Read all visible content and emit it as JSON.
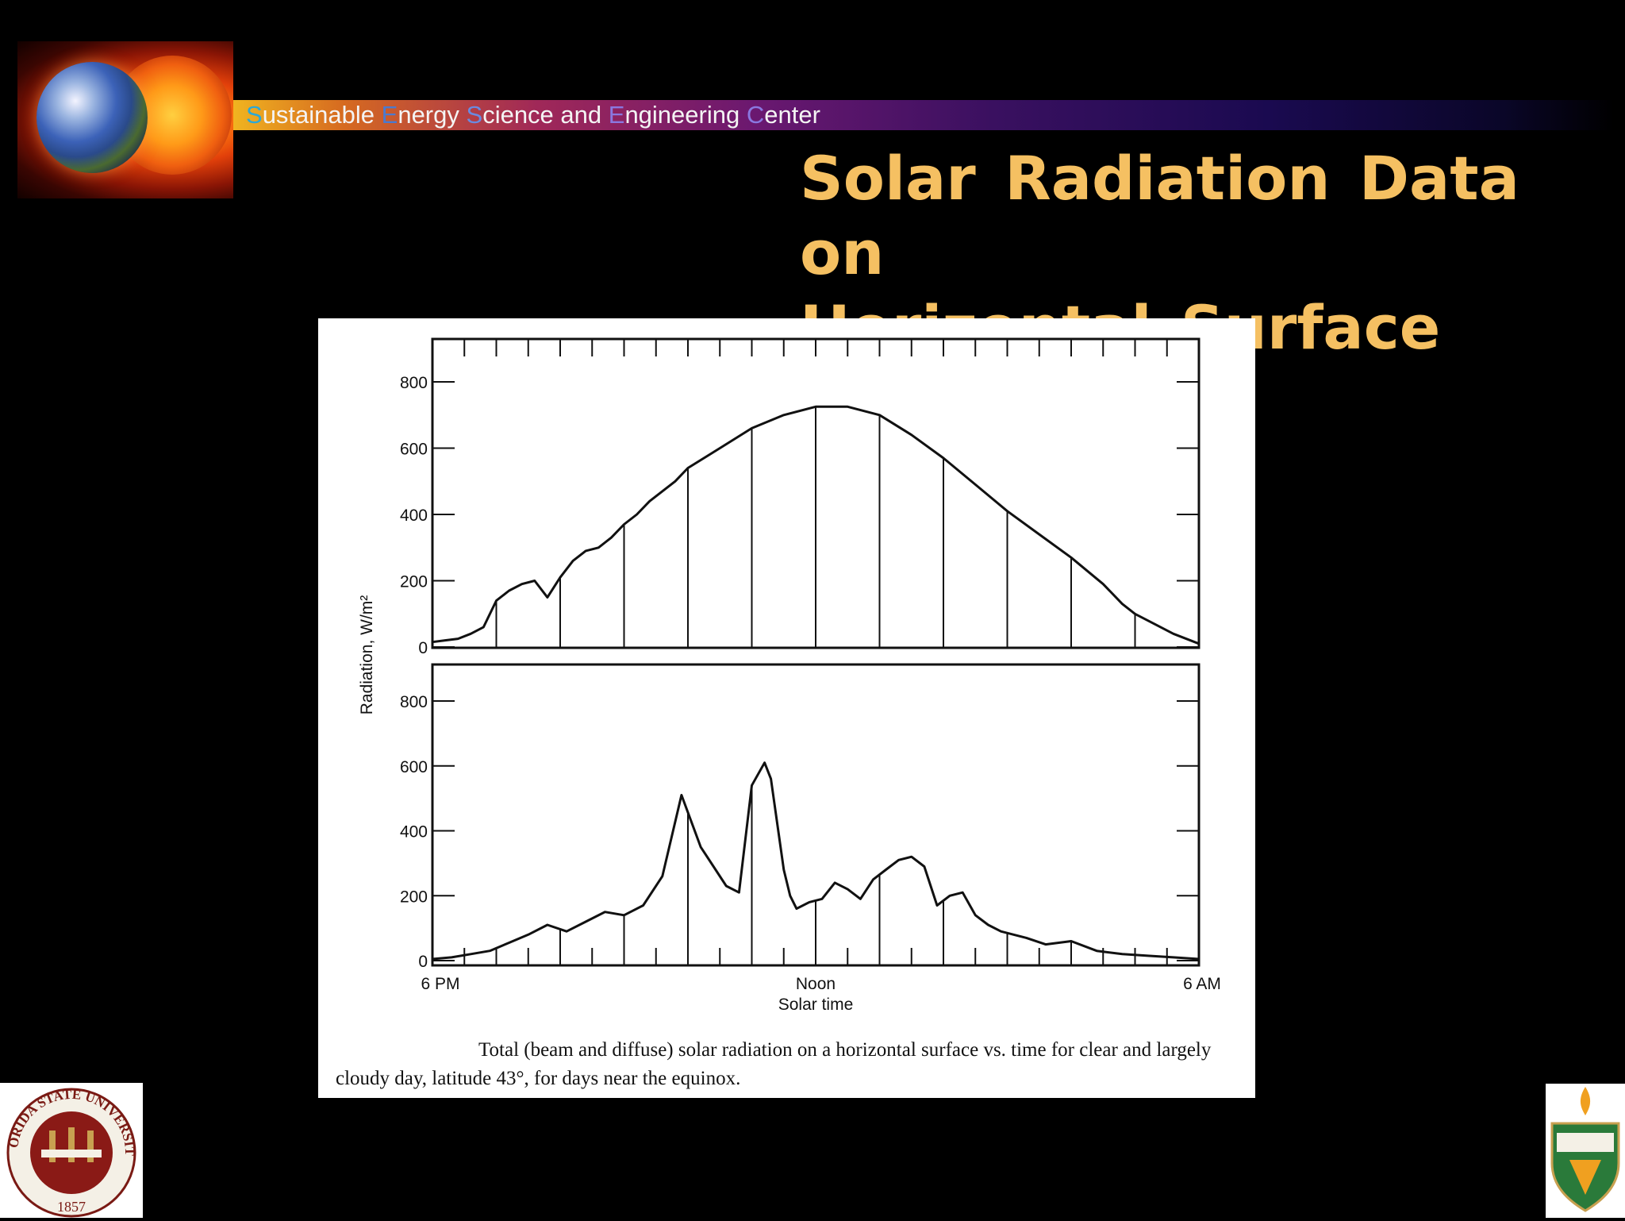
{
  "header": {
    "banner_parts": [
      {
        "cap": "S",
        "rest": "ustainable "
      },
      {
        "cap": "E",
        "rest": "nergy "
      },
      {
        "cap": "S",
        "rest": "cience and "
      },
      {
        "cap": "E",
        "rest": "ngineering "
      },
      {
        "cap": "C",
        "rest": "enter"
      }
    ],
    "cap_colors": [
      "#2aa8d8",
      "#4a7ad0",
      "#6a8ae0",
      "#8a78e0",
      "#8a78e0"
    ],
    "title_line1": "Solar Radiation Data on",
    "title_line2": "Horizontal Surface",
    "title_color": "#f5c062"
  },
  "logos": {
    "top_left": "earth-and-sun-logo",
    "bottom_left_seal_text": "FLORIDA STATE UNIVERSITY",
    "bottom_left_seal_year": "1857",
    "bottom_right": "famu-seal"
  },
  "caption": "Total (beam and diffuse) solar radiation on a horizontal surface vs. time for clear and largely cloudy day, latitude 43°, for days near the equinox.",
  "chart_data": [
    {
      "type": "line",
      "panel": "clear day (top)",
      "ylabel": "Radiation, W/m²",
      "ylim": [
        0,
        900
      ],
      "yticks": [
        "0",
        "200",
        "400",
        "600",
        "800"
      ],
      "x_unit": "hours from 6 PM",
      "xlim": [
        0,
        12
      ],
      "series": [
        {
          "x": [
            0.0,
            0.2,
            0.4,
            0.6,
            0.8,
            1.0,
            1.2,
            1.4,
            1.6,
            1.8,
            2.0,
            2.2,
            2.4,
            2.6,
            2.8,
            3.0,
            3.2,
            3.4,
            3.6,
            3.8,
            4.0,
            4.5,
            5.0,
            5.5,
            6.0,
            6.5,
            7.0,
            7.5,
            8.0,
            8.5,
            9.0,
            9.5,
            10.0,
            10.5,
            10.8,
            11.0,
            11.3,
            11.6,
            12.0
          ],
          "y": [
            15,
            20,
            25,
            40,
            60,
            140,
            170,
            190,
            200,
            150,
            210,
            260,
            290,
            300,
            330,
            370,
            400,
            440,
            470,
            500,
            540,
            600,
            660,
            700,
            725,
            725,
            700,
            640,
            570,
            490,
            410,
            340,
            270,
            190,
            130,
            100,
            70,
            40,
            10
          ]
        }
      ]
    },
    {
      "type": "line",
      "panel": "largely cloudy day (bottom)",
      "ylim": [
        0,
        900
      ],
      "yticks": [
        "0",
        "200",
        "400",
        "600",
        "800"
      ],
      "xlabel": "Solar time",
      "xticklabels": [
        "6 PM",
        "Noon",
        "6 AM"
      ],
      "x_unit": "hours from 6 PM",
      "xlim": [
        0,
        12
      ],
      "series": [
        {
          "x": [
            0.0,
            0.3,
            0.6,
            0.9,
            1.2,
            1.5,
            1.8,
            2.1,
            2.4,
            2.7,
            3.0,
            3.3,
            3.6,
            3.9,
            4.2,
            4.6,
            4.8,
            5.0,
            5.2,
            5.3,
            5.5,
            5.6,
            5.7,
            5.9,
            6.1,
            6.3,
            6.5,
            6.7,
            6.9,
            7.1,
            7.3,
            7.5,
            7.7,
            7.9,
            8.1,
            8.3,
            8.5,
            8.7,
            8.9,
            9.1,
            9.3,
            9.6,
            10.0,
            10.4,
            10.8,
            11.2,
            11.6,
            12.0
          ],
          "y": [
            5,
            10,
            20,
            30,
            55,
            80,
            110,
            90,
            120,
            150,
            140,
            170,
            260,
            510,
            350,
            230,
            210,
            540,
            610,
            560,
            280,
            200,
            160,
            180,
            190,
            240,
            220,
            190,
            250,
            280,
            310,
            320,
            290,
            170,
            200,
            210,
            140,
            110,
            90,
            80,
            70,
            50,
            60,
            30,
            20,
            15,
            10,
            5
          ]
        }
      ]
    }
  ]
}
